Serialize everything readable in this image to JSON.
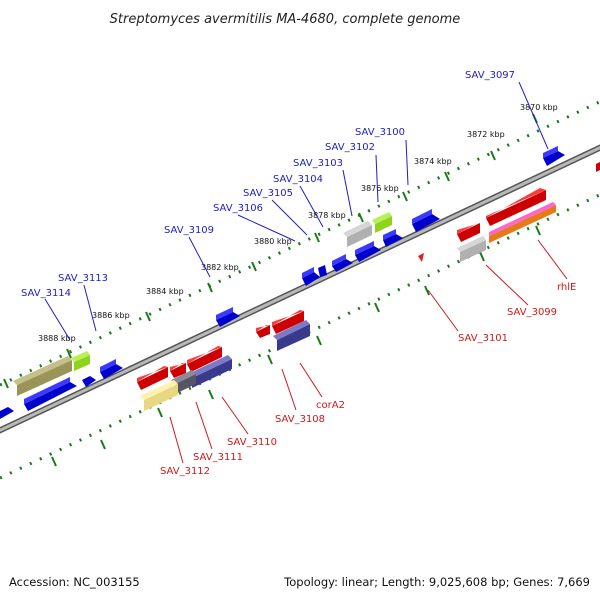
{
  "title": "Streptomyces avermitilis MA-4680, complete genome",
  "footer": {
    "accession": "Accession: NC_003155",
    "topology": "Topology: linear; Length: 9,025,608 bp; Genes: 7,669"
  },
  "scale_labels": [
    "3870 kbp",
    "3872 kbp",
    "3874 kbp",
    "3876 kbp",
    "3878 kbp",
    "3880 kbp",
    "3882 kbp",
    "3884 kbp",
    "3886 kbp",
    "3888 kbp"
  ],
  "top_gene_labels": [
    "SAV_3097",
    "SAV_3100",
    "SAV_3102",
    "SAV_3103",
    "SAV_3104",
    "SAV_3105",
    "SAV_3106",
    "SAV_3109",
    "SAV_3113",
    "SAV_3114"
  ],
  "bottom_gene_labels": [
    "rhlE",
    "SAV_3099",
    "SAV_3101",
    "corA2",
    "SAV_3108",
    "SAV_3110",
    "SAV_3111",
    "SAV_3112"
  ],
  "colors": {
    "forward_genes": "#1a1ae6",
    "reverse_genes": "#e61a1a",
    "backbone": "#808080",
    "tick": "#1a7a1a"
  }
}
